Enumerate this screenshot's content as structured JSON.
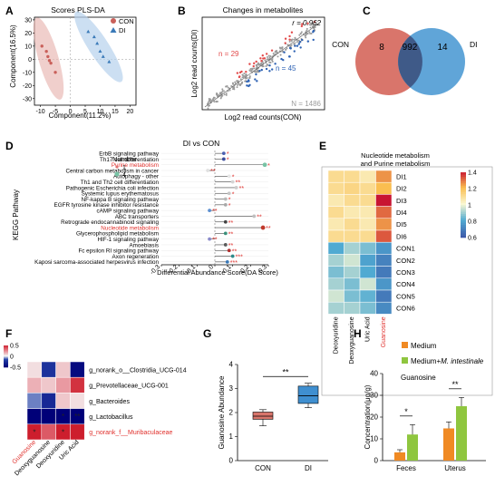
{
  "panel_letters": [
    "A",
    "B",
    "C",
    "D",
    "E",
    "F",
    "G",
    "H"
  ],
  "chart_data": [
    {
      "panel": "A",
      "type": "scatter",
      "title": "Scores PLS-DA",
      "xlabel": "Component(11.2%)",
      "ylabel": "Component(16.5%)",
      "xlim": [
        -12,
        22
      ],
      "ylim": [
        -35,
        32
      ],
      "xticks": [
        -10,
        -5,
        0,
        5,
        10,
        15,
        20
      ],
      "yticks": [
        -30,
        -20,
        -10,
        0,
        10,
        20,
        30
      ],
      "legend": [
        "CON",
        "DI"
      ],
      "series": [
        {
          "name": "CON",
          "color": "#c9605a",
          "points": [
            [
              -9.5,
              10
            ],
            [
              -8,
              6
            ],
            [
              -7.5,
              2
            ],
            [
              -7,
              -1
            ],
            [
              -6.5,
              -3
            ],
            [
              -5,
              -10
            ]
          ]
        },
        {
          "name": "DI",
          "color": "#3a7ab8",
          "points": [
            [
              6,
              21
            ],
            [
              8,
              17
            ],
            [
              9,
              12
            ],
            [
              10,
              6
            ],
            [
              11,
              2
            ],
            [
              13,
              -2
            ]
          ]
        }
      ]
    },
    {
      "panel": "B",
      "type": "scatter",
      "title": "Changes in metabolites",
      "xlabel": "Log2 read counts(CON)",
      "ylabel": "Log2 read counts(DI)",
      "annotations": [
        "r = 0.962",
        "n = 29",
        "n = 45",
        "N = 1486"
      ],
      "colors": {
        "up": "#e24a4a",
        "down": "#2f63b4",
        "ns": "#9b9b9b"
      }
    },
    {
      "panel": "C",
      "type": "venn",
      "sets": [
        {
          "label": "CON",
          "only": "8",
          "color": "#d9756b"
        },
        {
          "label": "DI",
          "only": "14",
          "color": "#4f9bd4"
        }
      ],
      "shared": "992"
    },
    {
      "panel": "D",
      "type": "scatter",
      "title": "DI vs CON",
      "ylabel": "KEGG Pathway",
      "xlabel": "Differential Abundance Score(DA Score)",
      "xlim": [
        -0.3,
        0.3
      ],
      "xticks": [
        "-0.3",
        "-0.2",
        "-0.1",
        "0",
        "0.1",
        "0.2",
        "0.3"
      ],
      "legend_title": "Number",
      "legend": [
        "1",
        "4"
      ],
      "rows": [
        {
          "name": "ErbB signaling pathway",
          "score": 0.05,
          "stars": "*",
          "highlight": false,
          "color": "#4b60b0"
        },
        {
          "name": "Th17 cell differentiation",
          "score": 0.05,
          "stars": "*",
          "highlight": false,
          "color": "#3d4c9c"
        },
        {
          "name": "Purine metabolism",
          "score": 0.28,
          "stars": "*",
          "highlight": true,
          "color": "#78c3a5"
        },
        {
          "name": "Central carbon metabolism in cancer",
          "score": -0.04,
          "stars": "**",
          "highlight": false,
          "color": "#e0e0e0"
        },
        {
          "name": "Autophagy - other",
          "score": 0.08,
          "stars": "*",
          "highlight": false,
          "color": "#e6e6e6"
        },
        {
          "name": "Th1 and Th2 cell differentiation",
          "score": 0.1,
          "stars": "**",
          "highlight": false,
          "color": "#d4d4d4"
        },
        {
          "name": "Pathogenic Escherichia coli infection",
          "score": 0.12,
          "stars": "**",
          "highlight": false,
          "color": "#cccccc"
        },
        {
          "name": "Systemic lupus erythematosus",
          "score": 0.08,
          "stars": "*",
          "highlight": false,
          "color": "#c6c6c6"
        },
        {
          "name": "NF-kappa B signaling pathway",
          "score": 0.06,
          "stars": "*",
          "highlight": false,
          "color": "#b8b8b8"
        },
        {
          "name": "EGFR tyrosine kinase inhibitor resistance",
          "score": 0.06,
          "stars": "*",
          "highlight": false,
          "color": "#a8a8a8"
        },
        {
          "name": "cAMP signaling pathway",
          "score": -0.03,
          "stars": "**",
          "highlight": false,
          "color": "#5b8fd0"
        },
        {
          "name": "ABC transporters",
          "score": 0.22,
          "stars": "**",
          "highlight": false,
          "color": "#bfbfbf"
        },
        {
          "name": "Retrograde endocannabinoid signaling",
          "score": 0.06,
          "stars": "**",
          "highlight": false,
          "color": "#444444"
        },
        {
          "name": "Nucleotide metabolism",
          "score": 0.27,
          "stars": "**",
          "highlight": true,
          "color": "#c0392b"
        },
        {
          "name": "Glycerophospholipid metabolism",
          "score": 0.06,
          "stars": "**",
          "highlight": false,
          "color": "#3b8f7a"
        },
        {
          "name": "HIF-1 signaling pathway",
          "score": -0.03,
          "stars": "**",
          "highlight": false,
          "color": "#8a8acb"
        },
        {
          "name": "Amoebiasis",
          "score": 0.06,
          "stars": "**",
          "highlight": false,
          "color": "#5a5a5a"
        },
        {
          "name": "Fc epsilon RI signaling pathway",
          "score": 0.08,
          "stars": "**",
          "highlight": false,
          "color": "#b03030"
        },
        {
          "name": "Axon regeneration",
          "score": 0.1,
          "stars": "***",
          "highlight": false,
          "color": "#2d8a8a"
        },
        {
          "name": "Kaposi sarcoma-associated herpesvirus infection",
          "score": 0.07,
          "stars": "***",
          "highlight": false,
          "color": "#3a79b8"
        }
      ]
    },
    {
      "panel": "E",
      "type": "heatmap",
      "title": [
        "Nucleotide metabolism",
        "and Purine metabolism"
      ],
      "columns": [
        "Deoxyuridine",
        "Deoxyguanosine",
        "Uric Acid",
        "Guanosine"
      ],
      "highlight_column": "Guanosine",
      "rows": [
        "DI1",
        "DI2",
        "DI3",
        "DI4",
        "DI5",
        "DI6",
        "CON1",
        "CON2",
        "CON3",
        "CON4",
        "CON5",
        "CON6"
      ],
      "scale": {
        "min": 0.6,
        "max": 1.4,
        "ticks": [
          "1.4",
          "1.2",
          "1",
          "0.8",
          "0.6"
        ]
      },
      "values": [
        [
          1.1,
          1.1,
          1.05,
          1.25
        ],
        [
          1.1,
          1.12,
          1.1,
          1.2
        ],
        [
          1.05,
          1.1,
          1.1,
          1.4
        ],
        [
          1.1,
          1.05,
          1.05,
          1.3
        ],
        [
          1.05,
          1.1,
          1.05,
          1.25
        ],
        [
          1.1,
          1.1,
          1.1,
          1.32
        ],
        [
          0.8,
          0.9,
          0.85,
          0.75
        ],
        [
          0.9,
          0.95,
          0.78,
          0.7
        ],
        [
          0.85,
          0.9,
          0.8,
          0.68
        ],
        [
          0.9,
          0.85,
          0.95,
          0.75
        ],
        [
          0.95,
          0.85,
          0.82,
          0.68
        ],
        [
          0.9,
          0.9,
          0.85,
          0.72
        ]
      ]
    },
    {
      "panel": "F",
      "type": "heatmap",
      "columns": [
        "Guanosine",
        "Deoxyguanosine",
        "Deoxyuridine",
        "Uric Acid"
      ],
      "highlight_column": "Guanosine",
      "rows": [
        "g_norank_o__Clostridia_UCG-014",
        "g_Prevotellaceae_UCG-001",
        "g_Bacteroides",
        "g_Lactobacillus",
        "g_norank_f__Muribaculaceae"
      ],
      "highlight_row": "g_norank_f__Muribaculaceae",
      "scale": {
        "min": -0.5,
        "max": 0.5,
        "ticks": [
          "0.5",
          "0",
          "-0.5"
        ]
      },
      "values": [
        [
          0.05,
          -0.25,
          0.1,
          -0.45
        ],
        [
          0.15,
          0.1,
          0.2,
          0.45
        ],
        [
          -0.1,
          -0.3,
          0.1,
          0.05
        ],
        [
          -0.8,
          -0.85,
          -0.75,
          -0.9
        ],
        [
          0.6,
          0.35,
          0.6,
          0.55
        ]
      ],
      "stars": [
        [
          "",
          "",
          "",
          ""
        ],
        [
          "",
          "",
          "",
          ""
        ],
        [
          "",
          "",
          "",
          ""
        ],
        [
          "",
          "",
          "*",
          "**"
        ],
        [
          "*",
          "",
          "*",
          ""
        ]
      ]
    },
    {
      "panel": "G",
      "type": "box",
      "ylabel": "Guanosine Abundance",
      "categories": [
        "CON",
        "DI"
      ],
      "ylim": [
        0,
        4
      ],
      "yticks": [
        0,
        1,
        2,
        3,
        4
      ],
      "significance": "**",
      "boxes": [
        {
          "name": "CON",
          "min": 1.45,
          "q1": 1.72,
          "median": 1.85,
          "q3": 2.02,
          "max": 2.12,
          "color": "#d9756b"
        },
        {
          "name": "DI",
          "min": 2.2,
          "q1": 2.38,
          "median": 2.7,
          "q3": 3.1,
          "max": 3.22,
          "color": "#3f8fd0"
        }
      ]
    },
    {
      "panel": "H",
      "type": "bar",
      "title": "Guanosine",
      "ylabel": "Concentration(μg/g)",
      "categories": [
        "Feces",
        "Uterus"
      ],
      "ylim": [
        0,
        40
      ],
      "yticks": [
        0,
        10,
        20,
        30,
        40
      ],
      "legend": [
        "Medium",
        "Medium+"
      ],
      "legend_italic": "M. intestinale",
      "series": [
        {
          "name": "Medium",
          "color": "#f08a24",
          "values": [
            3.8,
            14.8
          ],
          "errors": [
            1.2,
            3
          ]
        },
        {
          "name": "Medium+M. intestinale",
          "color": "#8fc63f",
          "values": [
            12,
            25
          ],
          "errors": [
            4.5,
            4
          ]
        }
      ],
      "significance": [
        "*",
        "**"
      ]
    }
  ]
}
